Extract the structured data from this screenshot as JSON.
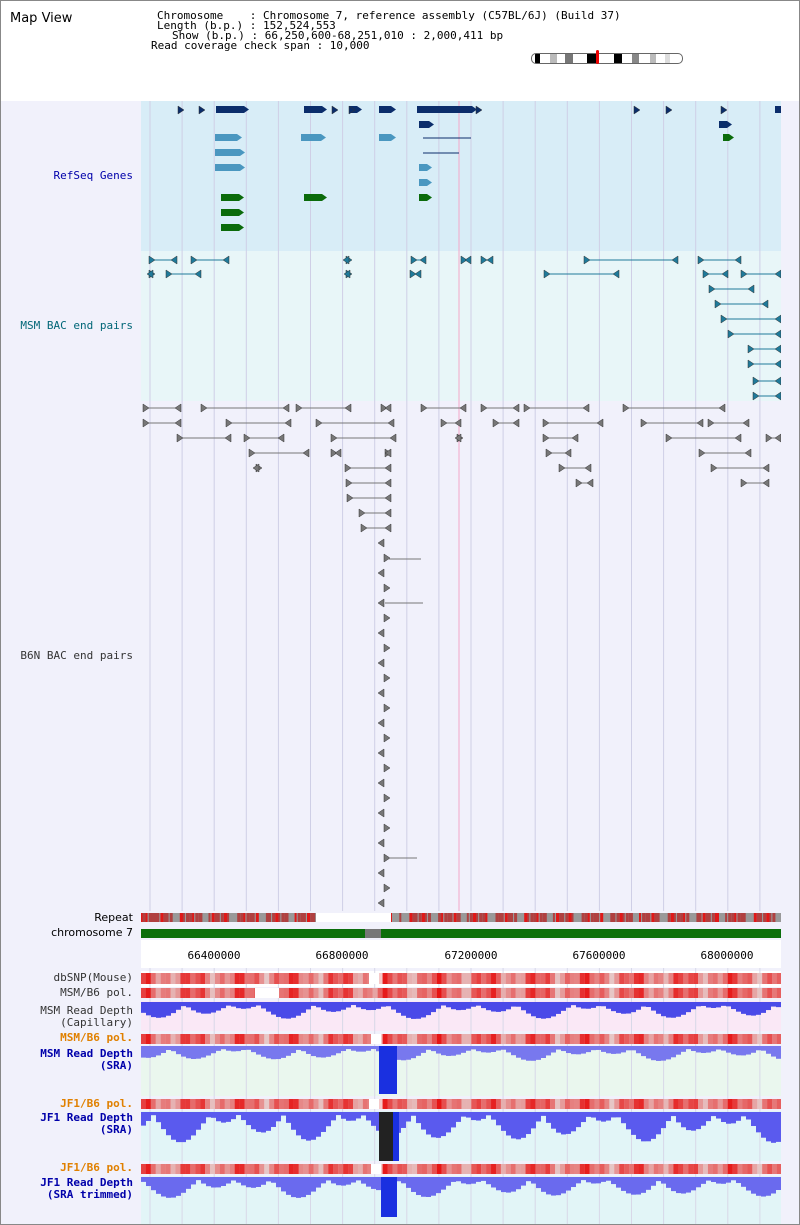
{
  "header": {
    "title": "Map View",
    "chromosome_label": "Chromosome    : Chromosome 7, reference assembly (C57BL/6J) (Build 37)",
    "length_label": "Length (b.p.) : 152,524,553",
    "show_label": "Show (b.p.) : 66,250,600-68,251,010 : 2,000,411 bp",
    "coverage_label": "Read coverage check span : 10,000"
  },
  "tracks": {
    "refseq": "RefSeq Genes",
    "msm_bac": "MSM BAC end pairs",
    "b6n_bac": "B6N BAC end pairs",
    "repeat": "Repeat",
    "chromosome": "chromosome 7",
    "dbsnp": "dbSNP(Mouse)",
    "msm_pol1": "MSM/B6 pol.",
    "msm_depth_cap_1": "MSM Read Depth",
    "msm_depth_cap_2": "(Capillary)",
    "msm_pol2": "MSM/B6 pol.",
    "msm_depth_sra_1": "MSM Read Depth",
    "msm_depth_sra_2": "(SRA)",
    "jf1_pol1": "JF1/B6 pol.",
    "jf1_depth_1": "JF1 Read Depth",
    "jf1_depth_2": "(SRA)",
    "jf1_pol2": "JF1/B6 pol.",
    "jf1_trim_1": "JF1 Read Depth",
    "jf1_trim_2": "(SRA trimmed)"
  },
  "axis": {
    "ticks": [
      "66400000",
      "66800000",
      "67200000",
      "67600000",
      "68000000"
    ]
  },
  "colors": {
    "refseq_dark": "#0b2d6b",
    "refseq_mid": "#4a97c0",
    "refseq_green": "#0b6b0b",
    "msm_bac": "#1f7a9a",
    "b6n_bac": "#777777",
    "chromosome": "#0b6e0b",
    "label_blue": "#0000aa",
    "label_teal": "#006677",
    "label_orange": "#e08000",
    "label_gray": "#333333"
  }
}
